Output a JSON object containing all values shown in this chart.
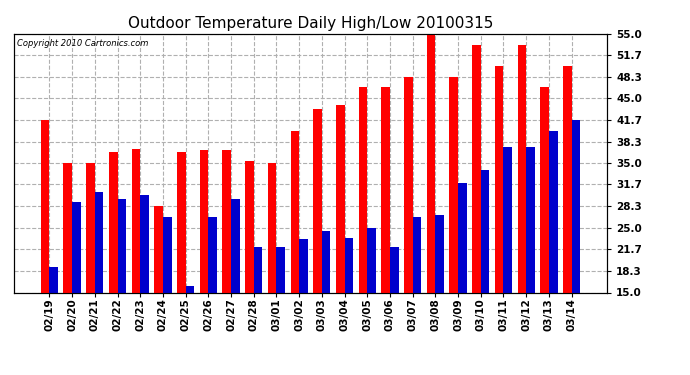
{
  "title": "Outdoor Temperature Daily High/Low 20100315",
  "copyright": "Copyright 2010 Cartronics.com",
  "dates": [
    "02/19",
    "02/20",
    "02/21",
    "02/22",
    "02/23",
    "02/24",
    "02/25",
    "02/26",
    "02/27",
    "02/28",
    "03/01",
    "03/02",
    "03/03",
    "03/04",
    "03/05",
    "03/06",
    "03/07",
    "03/08",
    "03/09",
    "03/10",
    "03/11",
    "03/12",
    "03/13",
    "03/14"
  ],
  "highs": [
    41.7,
    35.0,
    35.0,
    36.7,
    37.2,
    28.3,
    36.7,
    37.0,
    37.0,
    35.3,
    35.0,
    40.0,
    43.3,
    44.0,
    46.7,
    46.7,
    48.3,
    55.0,
    48.3,
    53.3,
    50.0,
    53.3,
    46.7,
    50.0
  ],
  "lows": [
    19.0,
    29.0,
    30.5,
    29.5,
    30.0,
    26.7,
    16.0,
    26.7,
    29.5,
    22.0,
    22.0,
    23.3,
    24.5,
    23.5,
    25.0,
    22.0,
    26.7,
    27.0,
    32.0,
    34.0,
    37.5,
    37.5,
    40.0,
    41.7
  ],
  "ylim_low": 15.0,
  "ylim_high": 55.0,
  "ytick_values": [
    15.0,
    18.3,
    21.7,
    25.0,
    28.3,
    31.7,
    35.0,
    38.3,
    41.7,
    45.0,
    48.3,
    51.7,
    55.0
  ],
  "ytick_labels": [
    "15.0",
    "18.3",
    "21.7",
    "25.0",
    "28.3",
    "31.7",
    "35.0",
    "38.3",
    "41.7",
    "45.0",
    "48.3",
    "51.7",
    "55.0"
  ],
  "high_color": "#ff0000",
  "low_color": "#0000cc",
  "bg_color": "#ffffff",
  "grid_color": "#b0b0b0",
  "title_fontsize": 11,
  "tick_fontsize": 7.5,
  "bar_width": 0.38
}
